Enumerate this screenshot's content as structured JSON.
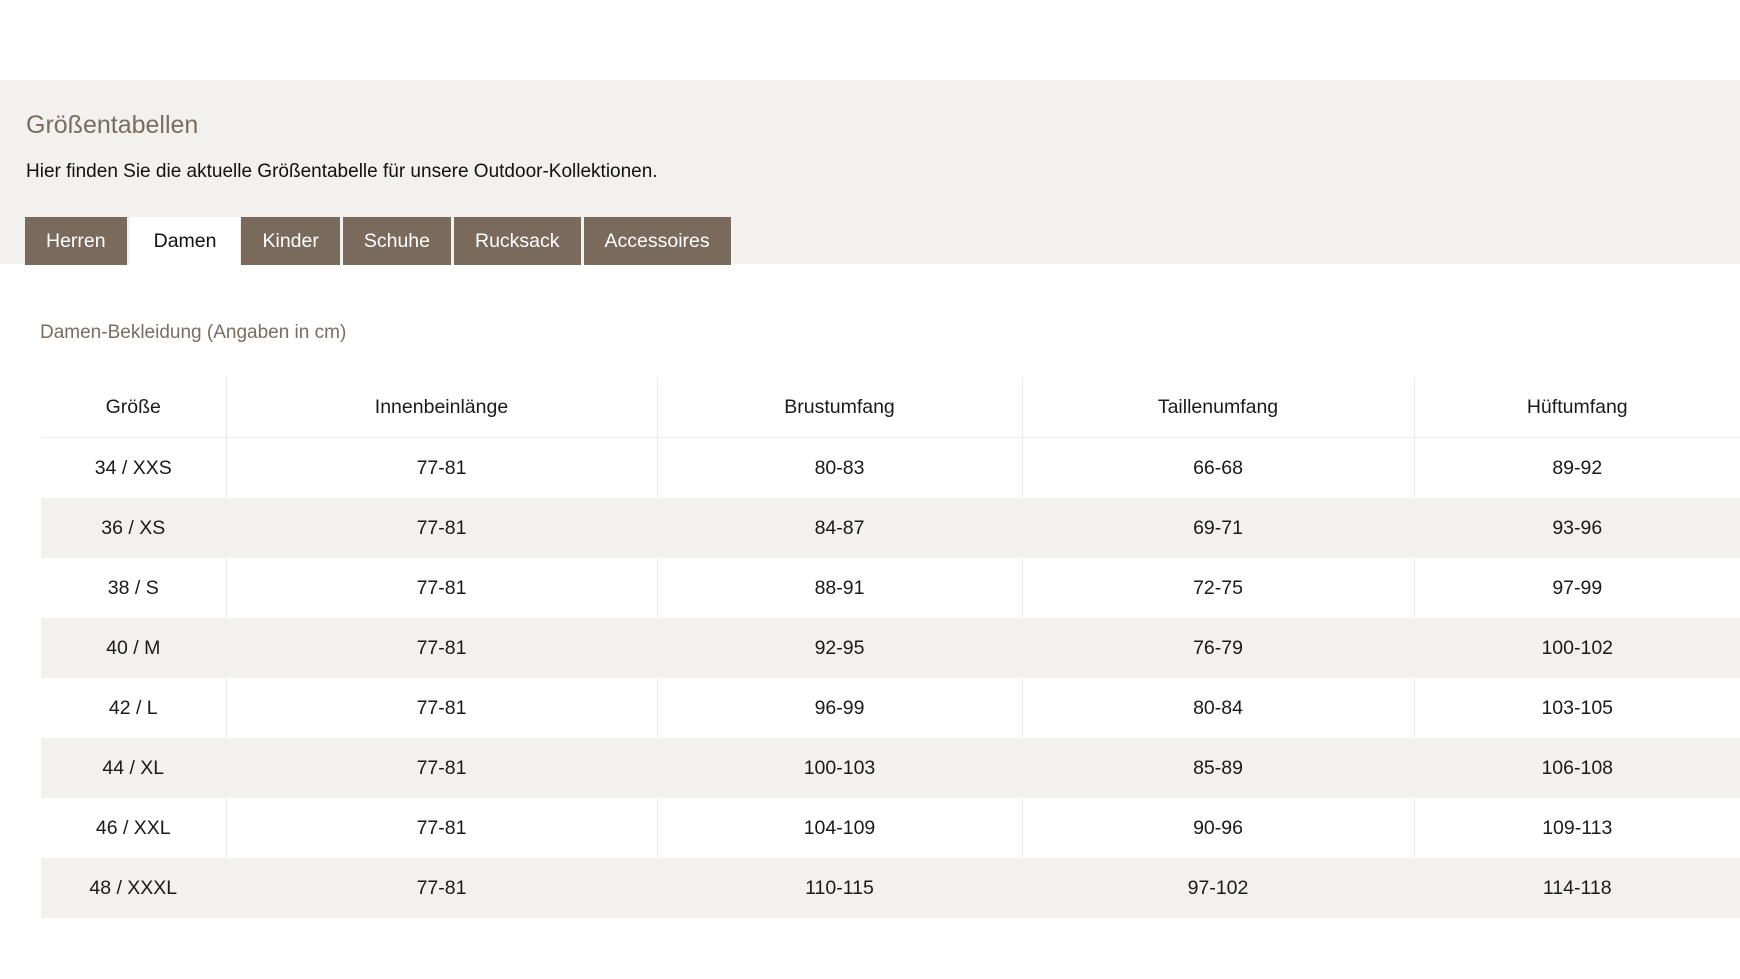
{
  "header": {
    "title": "Größentabellen",
    "subtitle": "Hier finden Sie die aktuelle Größentabelle für unsere Outdoor-Kollektionen."
  },
  "tabs": [
    {
      "label": "Herren",
      "active": false
    },
    {
      "label": "Damen",
      "active": true
    },
    {
      "label": "Kinder",
      "active": false
    },
    {
      "label": "Schuhe",
      "active": false
    },
    {
      "label": "Rucksack",
      "active": false
    },
    {
      "label": "Accessoires",
      "active": false
    }
  ],
  "colors": {
    "accent": "#7a6a5c",
    "band": "#f3f1ee"
  },
  "table": {
    "caption": "Damen-Bekleidung (Angaben in cm)",
    "headers": [
      "Größe",
      "Innenbeinlänge",
      "Brustumfang",
      "Taillenumfang",
      "Hüftumfang"
    ],
    "rows": [
      [
        "34 / XXS",
        "77-81",
        "80-83",
        "66-68",
        "89-92"
      ],
      [
        "36 / XS",
        "77-81",
        "84-87",
        "69-71",
        "93-96"
      ],
      [
        "38 / S",
        "77-81",
        "88-91",
        "72-75",
        "97-99"
      ],
      [
        "40 / M",
        "77-81",
        "92-95",
        "76-79",
        "100-102"
      ],
      [
        "42 / L",
        "77-81",
        "96-99",
        "80-84",
        "103-105"
      ],
      [
        "44 / XL",
        "77-81",
        "100-103",
        "85-89",
        "106-108"
      ],
      [
        "46 / XXL",
        "77-81",
        "104-109",
        "90-96",
        "109-113"
      ],
      [
        "48 / XXXL",
        "77-81",
        "110-115",
        "97-102",
        "114-118"
      ]
    ]
  }
}
